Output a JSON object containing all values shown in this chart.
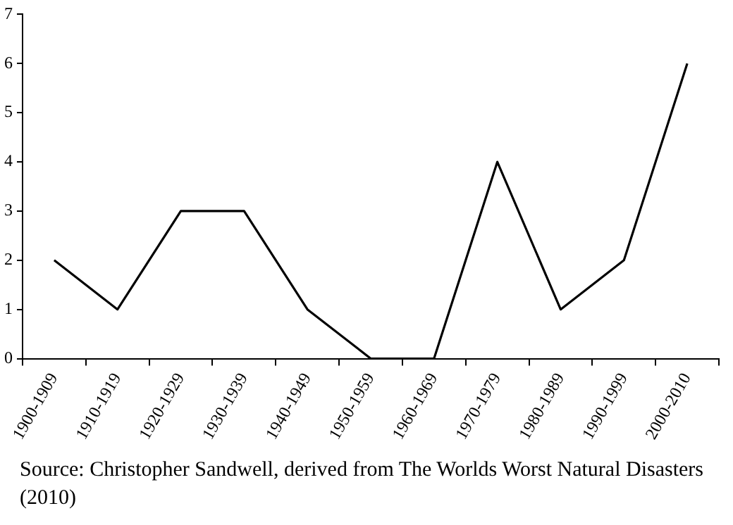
{
  "chart_data": {
    "type": "line",
    "categories": [
      "1900-1909",
      "1910-1919",
      "1920-1929",
      "1930-1939",
      "1940-1949",
      "1950-1959",
      "1960-1969",
      "1970-1979",
      "1980-1989",
      "1990-1999",
      "2000-2010"
    ],
    "series": [
      {
        "color": "#000000",
        "values": [
          2,
          1,
          3,
          3,
          1,
          0,
          0,
          4,
          1,
          2,
          6
        ]
      }
    ],
    "ylim": [
      0,
      7
    ],
    "yticks": [
      0,
      1,
      2,
      3,
      4,
      5,
      6,
      7
    ],
    "grid": false,
    "legend": false,
    "marker": "none",
    "line_style": "solid",
    "annotations": [
      "Source: Christopher Sandwell, derived from The Worlds Worst Natural Disasters (2010)"
    ]
  }
}
